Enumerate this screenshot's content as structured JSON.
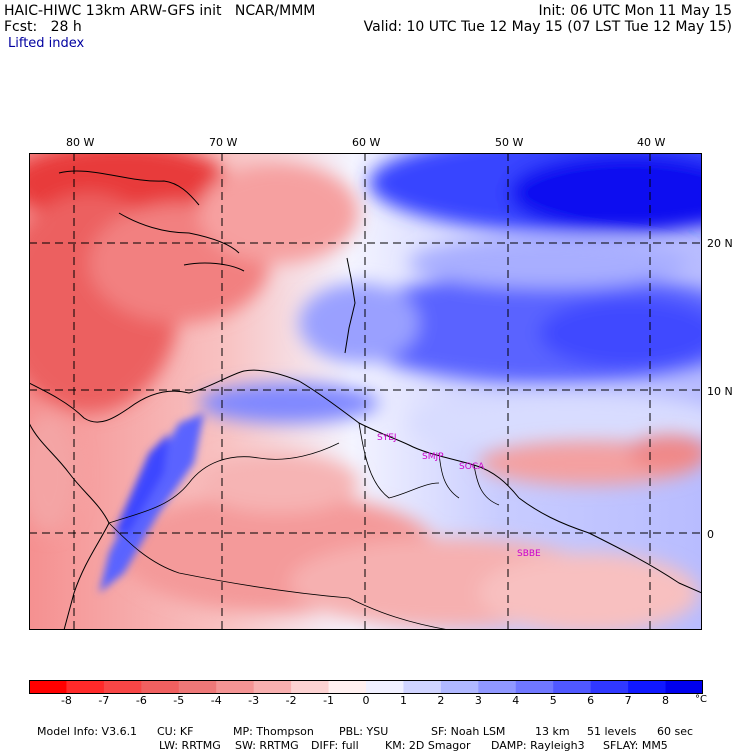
{
  "header": {
    "model_title": "HAIC-HIWC 13km ARW-GFS init",
    "org": "NCAR/MMM",
    "init": "Init: 06 UTC Mon 11 May 15",
    "fcst_label": "Fcst:",
    "fcst_value": "28 h",
    "valid": "Valid: 10 UTC Tue 12 May 15 (07 LST Tue 12 May 15)",
    "field": "Lifted index"
  },
  "map": {
    "lon_labels": [
      "80 W",
      "70 W",
      "60 W",
      "50 W",
      "40 W"
    ],
    "lat_labels": [
      "20 N",
      "10 N",
      "0"
    ],
    "stations": [
      "SYEJ",
      "SMJP",
      "SOCA",
      "SBBE"
    ],
    "station_color": "#cc00cc",
    "grid_color": "#000000"
  },
  "colorbar": {
    "labels": [
      "-8",
      "-7",
      "-6",
      "-5",
      "-4",
      "-3",
      "-2",
      "-1",
      "0",
      "1",
      "2",
      "3",
      "4",
      "5",
      "6",
      "7",
      "8"
    ],
    "unit": "°C",
    "colors": [
      "#ff0000",
      "#ff2a2a",
      "#f84646",
      "#f06060",
      "#ee7878",
      "#f49494",
      "#f8b0b0",
      "#fcd2d2",
      "#fff0f0",
      "#f0f0ff",
      "#d0d4ff",
      "#b0b8ff",
      "#9098ff",
      "#7078ff",
      "#5058ff",
      "#3038ff",
      "#1018ff",
      "#0000ee"
    ]
  },
  "footer": {
    "line1": [
      "Model Info: V3.6.1",
      "CU: KF",
      "MP: Thompson",
      "PBL: YSU",
      "SF: Noah LSM",
      "13 km",
      "51 levels",
      "60 sec"
    ],
    "line2": [
      "LW: RRTMG",
      "SW: RRTMG",
      "DIFF: full",
      "KM: 2D Smagor",
      "DAMP: Rayleigh3",
      "SFLAY: MM5"
    ]
  }
}
